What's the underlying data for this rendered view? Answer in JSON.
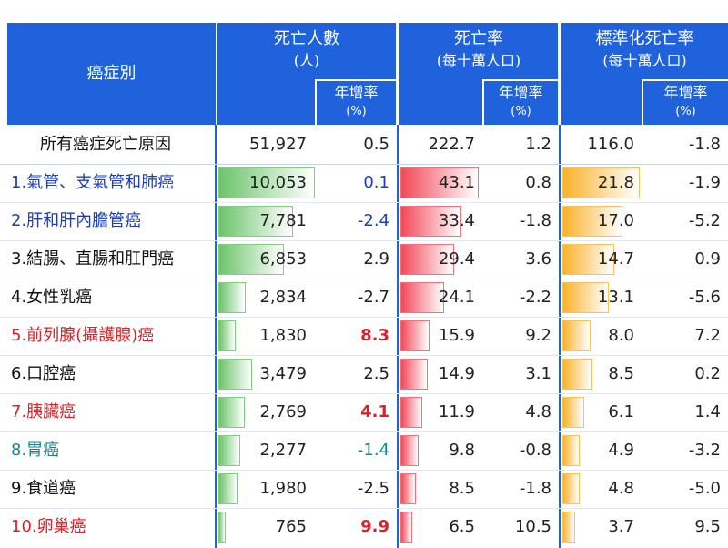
{
  "header": {
    "cause": "癌症別",
    "deaths": "死亡人數",
    "deaths_unit": "(人)",
    "rate": "死亡率",
    "rate_unit": "(每十萬人口)",
    "std_rate": "標準化死亡率",
    "std_rate_unit": "(每十萬人口)",
    "growth": "年增率",
    "growth_unit": "(%)"
  },
  "table": {
    "rows": [
      {
        "name": "所有癌症死亡原因",
        "color": "#111111",
        "deaths": {
          "value": 51927,
          "label": "51,927"
        },
        "deaths_growth": 0.5,
        "rate": 222.7,
        "rate_growth": 1.2,
        "std": {
          "value": 116,
          "label": "116.0"
        },
        "std_growth": -1.8
      },
      {
        "name": "1.氣管、支氣管和肺癌",
        "color": "#1b3fb8",
        "deaths": {
          "value": 10053,
          "label": "10,053"
        },
        "deaths_growth": 0.1,
        "growth_color": "#1b3fb8",
        "rate": 43.1,
        "rate_growth": 0.8,
        "std": 21.8,
        "std_growth": -1.9
      },
      {
        "name": "2.肝和肝內膽管癌",
        "color": "#1b3fb8",
        "deaths": {
          "value": 7781,
          "label": "7,781"
        },
        "deaths_growth": -2.4,
        "growth_color": "#1b3fb8",
        "rate": 33.4,
        "rate_growth": -1.8,
        "std": {
          "value": 17,
          "label": "17.0"
        },
        "std_growth": -5.2
      },
      {
        "name": "3.結腸、直腸和肛門癌",
        "color": "#111111",
        "deaths": {
          "value": 6853,
          "label": "6,853"
        },
        "deaths_growth": 2.9,
        "rate": 29.4,
        "rate_growth": 3.6,
        "std": 14.7,
        "std_growth": 0.9
      },
      {
        "name": "4.女性乳癌",
        "color": "#111111",
        "deaths": {
          "value": 2834,
          "label": "2,834"
        },
        "deaths_growth": -2.7,
        "rate": 24.1,
        "rate_growth": -2.2,
        "std": 13.1,
        "std_growth": -5.6
      },
      {
        "name": "5.前列腺(攝護腺)癌",
        "color": "#d8232a",
        "deaths": {
          "value": 1830,
          "label": "1,830"
        },
        "deaths_growth": 8.3,
        "growth_color": "#d8232a",
        "growth_bold": true,
        "rate": 15.9,
        "rate_growth": 9.2,
        "std": {
          "value": 8,
          "label": "8.0"
        },
        "std_growth": 7.2
      },
      {
        "name": "6.口腔癌",
        "color": "#111111",
        "deaths": {
          "value": 3479,
          "label": "3,479"
        },
        "deaths_growth": 2.5,
        "rate": 14.9,
        "rate_growth": 3.1,
        "std": 8.5,
        "std_growth": 0.2
      },
      {
        "name": "7.胰臟癌",
        "color": "#d8232a",
        "deaths": {
          "value": 2769,
          "label": "2,769"
        },
        "deaths_growth": 4.1,
        "growth_color": "#d8232a",
        "growth_bold": true,
        "rate": 11.9,
        "rate_growth": 4.8,
        "std": 6.1,
        "std_growth": 1.4
      },
      {
        "name": "8.胃癌",
        "color": "#17868a",
        "deaths": {
          "value": 2277,
          "label": "2,277"
        },
        "deaths_growth": -1.4,
        "growth_color": "#17868a",
        "rate": 9.8,
        "rate_growth": -0.8,
        "std": 4.9,
        "std_growth": -3.2
      },
      {
        "name": "9.食道癌",
        "color": "#111111",
        "deaths": {
          "value": 1980,
          "label": "1,980"
        },
        "deaths_growth": -2.5,
        "rate": 8.5,
        "rate_growth": -1.8,
        "std": 4.8,
        "std_growth": {
          "value": -5,
          "label": "-5.0"
        }
      },
      {
        "name": "10.卵巢癌",
        "color": "#d8232a",
        "deaths": {
          "value": 765,
          "label": "765"
        },
        "deaths_growth": 9.9,
        "growth_color": "#d8232a",
        "growth_bold": true,
        "rate": 6.5,
        "rate_growth": 10.5,
        "std": 3.7,
        "std_growth": 9.5
      }
    ]
  }
}
